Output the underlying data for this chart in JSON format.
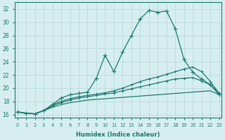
{
  "xlabel": "Humidex (Indice chaleur)",
  "bg_color": "#d6eef0",
  "grid_color": "#c0dde0",
  "line_color": "#1a7a6e",
  "x_ticks": [
    0,
    1,
    2,
    3,
    4,
    5,
    6,
    7,
    8,
    9,
    10,
    11,
    12,
    13,
    14,
    15,
    16,
    17,
    18,
    19,
    20,
    21,
    22,
    23
  ],
  "y_ticks": [
    16,
    18,
    20,
    22,
    24,
    26,
    28,
    30,
    32
  ],
  "xlim": [
    0,
    23
  ],
  "ylim": [
    15.5,
    33.0
  ],
  "series": [
    [
      16.4,
      16.2,
      16.1,
      16.6,
      17.5,
      18.5,
      19.0,
      19.2,
      19.4,
      21.5,
      25.0,
      22.5,
      25.5,
      28.0,
      30.5,
      31.8,
      31.5,
      31.7,
      29.0,
      24.3,
      22.4,
      21.4,
      20.5,
      19.0
    ],
    [
      16.4,
      16.2,
      16.1,
      16.6,
      17.5,
      18.0,
      18.4,
      18.7,
      18.9,
      19.1,
      19.3,
      19.6,
      20.0,
      20.5,
      21.0,
      21.4,
      21.7,
      22.1,
      22.5,
      22.9,
      23.2,
      22.5,
      21.0,
      19.2
    ],
    [
      16.4,
      16.2,
      16.1,
      16.6,
      17.3,
      17.8,
      18.2,
      18.5,
      18.7,
      18.9,
      19.1,
      19.3,
      19.6,
      19.9,
      20.2,
      20.5,
      20.8,
      21.1,
      21.4,
      21.5,
      21.6,
      21.1,
      20.5,
      19.2
    ],
    [
      16.4,
      16.2,
      16.1,
      16.6,
      17.1,
      17.5,
      17.8,
      18.0,
      18.2,
      18.3,
      18.4,
      18.5,
      18.6,
      18.7,
      18.8,
      18.9,
      19.0,
      19.1,
      19.2,
      19.3,
      19.4,
      19.5,
      19.6,
      19.0
    ]
  ]
}
